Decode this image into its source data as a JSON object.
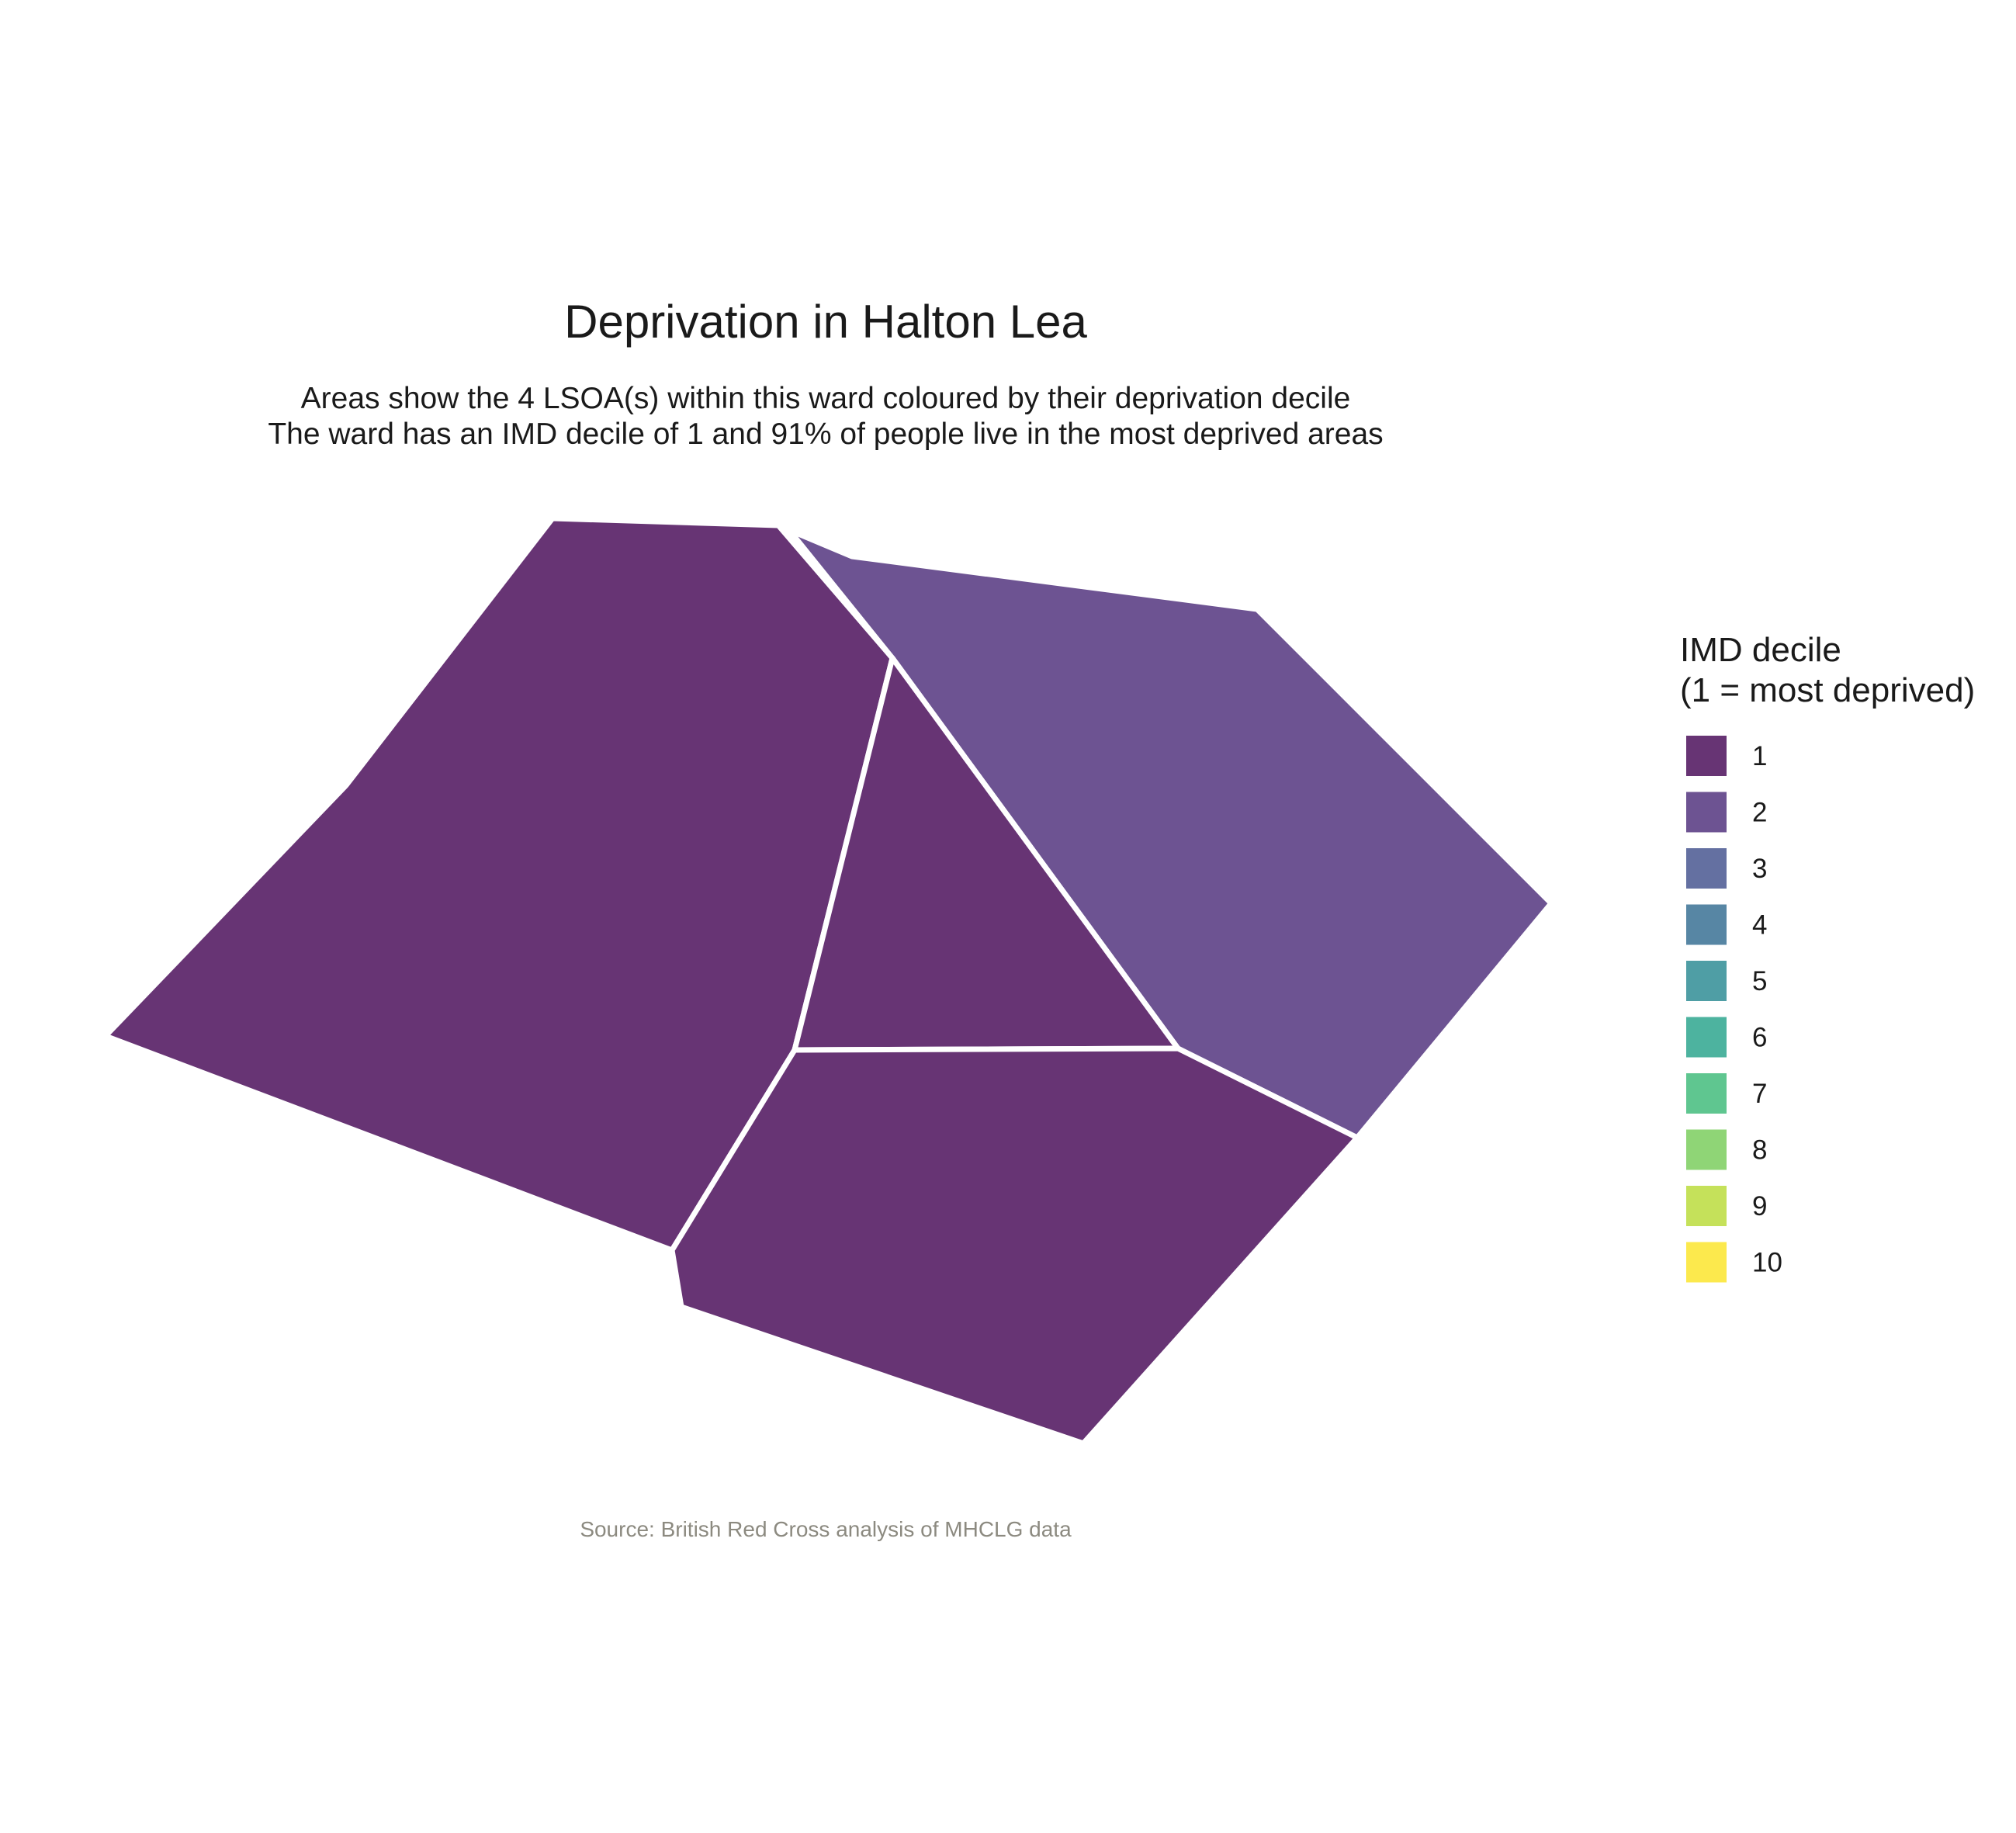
{
  "map": {
    "title": "Deprivation in Halton Lea",
    "subtitle_line1": "Areas show the 4 LSOA(s) within this ward coloured by their deprivation decile",
    "subtitle_line2": "The ward has an IMD decile of 1 and 91% of people live in the most deprived areas",
    "caption": "Source: British Red Cross analysis of MHCLG data",
    "areas": [
      {
        "name": "lsoa-west",
        "decile": 1
      },
      {
        "name": "lsoa-northeast",
        "decile": 2
      },
      {
        "name": "lsoa-centre",
        "decile": 1
      },
      {
        "name": "lsoa-south",
        "decile": 1
      }
    ]
  },
  "legend": {
    "title_line1": "IMD decile",
    "title_line2": "(1 = most deprived)",
    "items": [
      {
        "label": "1",
        "color": "#673474"
      },
      {
        "label": "2",
        "color": "#6d5392"
      },
      {
        "label": "3",
        "color": "#6470a1"
      },
      {
        "label": "4",
        "color": "#5786a4"
      },
      {
        "label": "5",
        "color": "#4f9ea5"
      },
      {
        "label": "6",
        "color": "#4db39f"
      },
      {
        "label": "7",
        "color": "#5fc690"
      },
      {
        "label": "8",
        "color": "#8fd576"
      },
      {
        "label": "9",
        "color": "#c5e15a"
      },
      {
        "label": "10",
        "color": "#fce94d"
      }
    ]
  }
}
